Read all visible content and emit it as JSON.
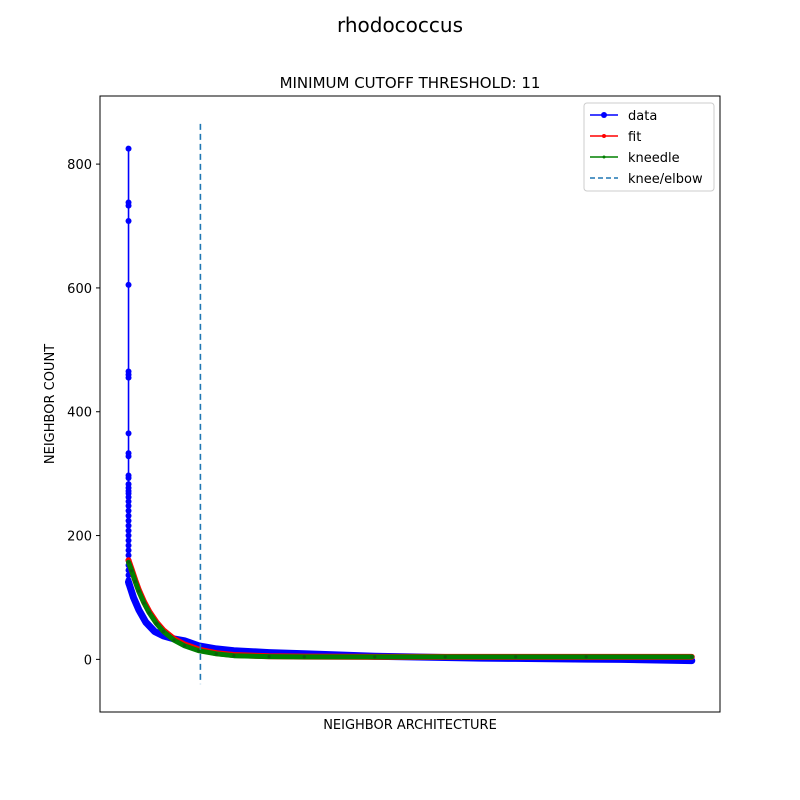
{
  "chart_data": {
    "type": "line",
    "suptitle": "rhodococcus",
    "title": "MINIMUM CUTOFF THRESHOLD: 11",
    "xlabel": "NEIGHBOR ARCHITECTURE",
    "ylabel": "NEIGHBOR COUNT",
    "x_ticks_shown": false,
    "xlim": [
      -80,
      1680
    ],
    "ylim": [
      -85,
      910
    ],
    "y_ticks": [
      0,
      200,
      400,
      600,
      800
    ],
    "y_tick_labels": [
      "0",
      "200",
      "400",
      "600",
      "800"
    ],
    "grid": false,
    "legend_position": "top-right",
    "knee_x": 205,
    "knee_ymin": -40,
    "knee_ymax": 865,
    "legend": [
      "data",
      "fit",
      "kneedle",
      "knee/elbow"
    ],
    "series": [
      {
        "name": "data",
        "color": "#0000ff",
        "marker": "circle",
        "spike_x": 1,
        "spike_points": [
          825,
          738,
          733,
          708,
          605,
          465,
          460,
          455,
          365,
          333,
          328,
          297,
          293,
          283,
          277,
          272,
          268,
          262,
          255,
          248,
          240,
          232,
          224,
          216,
          208,
          200,
          192,
          184,
          176,
          168,
          160,
          152,
          144,
          136,
          128,
          122
        ],
        "x": [
          1,
          15,
          30,
          50,
          75,
          100,
          130,
          160,
          200,
          250,
          300,
          400,
          500,
          600,
          700,
          800,
          900,
          1000,
          1100,
          1200,
          1300,
          1400,
          1500,
          1600
        ],
        "y": [
          125,
          100,
          80,
          60,
          45,
          38,
          33,
          30,
          22,
          17,
          14,
          11,
          9,
          7,
          5,
          4,
          3,
          2,
          1.5,
          1,
          0.5,
          0,
          -1,
          -2
        ]
      },
      {
        "name": "fit",
        "color": "#ff0000",
        "marker": "point",
        "x": [
          1,
          10,
          20,
          30,
          45,
          60,
          80,
          100,
          130,
          160,
          200,
          250,
          300,
          400,
          500,
          700,
          900,
          1100,
          1300,
          1600
        ],
        "y": [
          160,
          145,
          128,
          112,
          93,
          77,
          60,
          47,
          33,
          24,
          16,
          10,
          7,
          5,
          4.5,
          4,
          4,
          4,
          4,
          4
        ]
      },
      {
        "name": "kneedle",
        "color": "#008000",
        "marker": "point",
        "x": [
          1,
          10,
          20,
          30,
          45,
          60,
          80,
          100,
          130,
          160,
          200,
          250,
          300,
          400,
          500,
          700,
          900,
          1100,
          1300,
          1600
        ],
        "y": [
          157,
          143,
          126,
          110,
          91,
          75,
          58,
          45,
          31,
          22,
          14,
          9,
          6,
          4.5,
          4,
          4,
          4,
          4,
          4,
          4
        ]
      },
      {
        "name": "knee/elbow",
        "color": "#1f77b4",
        "style": "dashed"
      }
    ]
  }
}
